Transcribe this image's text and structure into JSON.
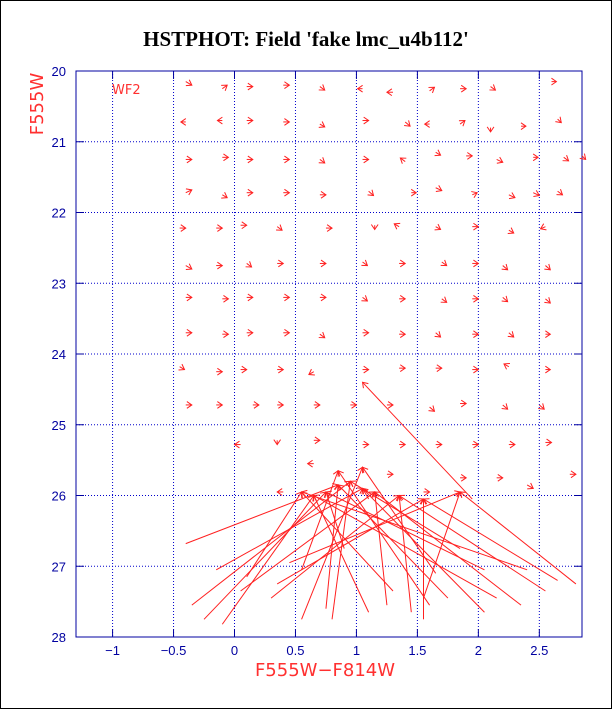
{
  "chart_data": {
    "type": "scatter",
    "title": "HSTPHOT: Field 'fake lmc_u4b112'",
    "xlabel": "F555W−F814W",
    "ylabel": "F555W",
    "annotation": "WF2",
    "xlim": [
      -1.3,
      2.85
    ],
    "ylim": [
      28,
      20
    ],
    "y_inverted": true,
    "grid": true,
    "x_ticks": [
      -1,
      -0.5,
      0,
      0.5,
      1,
      1.5,
      2,
      2.5
    ],
    "x_tick_labels": [
      "−1",
      "−0.5",
      "0",
      "0.5",
      "1",
      "1.5",
      "2",
      "2.5"
    ],
    "y_ticks": [
      20,
      21,
      22,
      23,
      24,
      25,
      26,
      27,
      28
    ],
    "y_tick_labels": [
      "20",
      "21",
      "22",
      "23",
      "24",
      "25",
      "26",
      "27",
      "28"
    ],
    "colors": {
      "vectors": "#ff2020",
      "grid": "#0000cc",
      "axes": "#0000a0",
      "title": "#000000",
      "labels": "#ff3030"
    },
    "series": [
      {
        "x": [
          -0.4,
          -0.1,
          0.1,
          0.4,
          0.7,
          1.05,
          1.3,
          1.6,
          1.85,
          2.1,
          2.6
        ],
        "y": [
          20.15,
          20.25,
          20.22,
          20.2,
          20.22,
          20.25,
          20.3,
          20.28,
          20.25,
          20.22,
          20.15
        ],
        "dx": [
          0.05,
          0.04,
          0.05,
          0.05,
          0.04,
          -0.04,
          -0.05,
          0.04,
          0.05,
          0.04,
          0.04
        ],
        "dy": [
          0.05,
          -0.05,
          0.0,
          0.0,
          0.05,
          0.0,
          0.0,
          -0.05,
          0.0,
          0.05,
          0.0
        ]
      },
      {
        "x": [
          -0.4,
          -0.1,
          0.1,
          0.4,
          0.7,
          1.05,
          1.4,
          1.6,
          1.85,
          2.1,
          2.35,
          2.65
        ],
        "y": [
          20.72,
          20.7,
          20.7,
          20.72,
          20.75,
          20.7,
          20.72,
          20.75,
          20.75,
          20.8,
          20.78,
          20.68
        ],
        "dx": [
          -0.04,
          -0.04,
          0.05,
          0.05,
          0.04,
          0.05,
          0.04,
          -0.04,
          0.04,
          0.0,
          0.04,
          0.03
        ],
        "dy": [
          0.0,
          0.0,
          0.0,
          0.0,
          0.04,
          0.0,
          0.06,
          0.0,
          -0.05,
          0.06,
          0.0,
          0.05
        ]
      },
      {
        "x": [
          -0.4,
          -0.1,
          0.1,
          0.4,
          0.7,
          1.05,
          1.4,
          1.65,
          1.9,
          2.15,
          2.45,
          2.7,
          2.85
        ],
        "y": [
          21.25,
          21.22,
          21.25,
          21.25,
          21.25,
          21.25,
          21.28,
          21.15,
          21.2,
          21.25,
          21.22,
          21.22,
          21.2
        ],
        "dx": [
          0.05,
          0.05,
          0.05,
          0.05,
          0.04,
          0.05,
          -0.04,
          0.04,
          0.05,
          0.05,
          0.04,
          0.04,
          0.03
        ],
        "dy": [
          0.0,
          0.0,
          0.0,
          0.0,
          0.05,
          0.0,
          -0.05,
          0.04,
          0.0,
          0.04,
          0.0,
          0.05,
          0.05
        ]
      },
      {
        "x": [
          -0.4,
          -0.1,
          0.1,
          0.4,
          0.7,
          1.1,
          1.45,
          1.65,
          1.95,
          2.25,
          2.45,
          2.65
        ],
        "y": [
          21.72,
          21.75,
          21.72,
          21.72,
          21.75,
          21.7,
          21.72,
          21.65,
          21.75,
          21.75,
          21.72,
          21.7
        ],
        "dx": [
          0.05,
          0.04,
          0.05,
          0.05,
          0.05,
          0.04,
          0.04,
          0.05,
          0.04,
          0.05,
          0.05,
          0.04
        ],
        "dy": [
          -0.04,
          0.04,
          0.0,
          0.0,
          0.0,
          0.06,
          0.0,
          0.04,
          -0.03,
          0.04,
          0.04,
          0.05
        ]
      },
      {
        "x": [
          -0.45,
          -0.15,
          0.05,
          0.35,
          0.75,
          1.15,
          1.35,
          1.65,
          1.95,
          2.25,
          2.55
        ],
        "y": [
          22.22,
          22.22,
          22.18,
          22.2,
          22.22,
          22.18,
          22.2,
          22.2,
          22.2,
          22.25,
          22.2
        ],
        "dx": [
          0.05,
          0.05,
          0.05,
          0.04,
          0.05,
          0.0,
          -0.04,
          0.04,
          0.05,
          0.04,
          -0.04
        ],
        "dy": [
          0.0,
          0.0,
          0.0,
          0.05,
          0.0,
          0.06,
          -0.04,
          0.04,
          0.0,
          0.04,
          0.03
        ]
      },
      {
        "x": [
          -0.4,
          -0.15,
          0.1,
          0.35,
          0.7,
          1.05,
          1.35,
          1.7,
          1.95,
          2.2,
          2.55
        ],
        "y": [
          22.75,
          22.75,
          22.72,
          22.72,
          22.72,
          22.7,
          22.72,
          22.7,
          22.72,
          22.75,
          22.75
        ],
        "dx": [
          0.05,
          0.05,
          0.04,
          0.05,
          0.05,
          0.04,
          0.05,
          0.04,
          0.05,
          0.04,
          0.04
        ],
        "dy": [
          0.05,
          0.0,
          0.05,
          0.0,
          0.0,
          0.05,
          0.0,
          0.05,
          0.0,
          0.06,
          0.06
        ]
      },
      {
        "x": [
          -0.4,
          -0.1,
          0.1,
          0.4,
          0.7,
          1.05,
          1.35,
          1.7,
          1.95,
          2.2,
          2.55
        ],
        "y": [
          23.2,
          23.22,
          23.2,
          23.2,
          23.2,
          23.2,
          23.22,
          23.22,
          23.22,
          23.2,
          23.22
        ],
        "dx": [
          0.05,
          0.05,
          0.05,
          0.05,
          0.05,
          0.04,
          0.05,
          0.04,
          0.05,
          0.04,
          0.04
        ],
        "dy": [
          0.0,
          0.0,
          0.0,
          0.0,
          0.0,
          0.05,
          0.0,
          0.05,
          0.0,
          0.06,
          0.06
        ]
      },
      {
        "x": [
          -0.4,
          -0.1,
          0.1,
          0.4,
          0.7,
          1.05,
          1.35,
          1.65,
          1.95,
          2.25,
          2.55
        ],
        "y": [
          23.7,
          23.72,
          23.7,
          23.7,
          23.72,
          23.7,
          23.72,
          23.7,
          23.72,
          23.7,
          23.72
        ],
        "dx": [
          0.05,
          0.05,
          0.05,
          0.05,
          0.04,
          0.05,
          0.05,
          0.04,
          0.05,
          0.04,
          0.04
        ],
        "dy": [
          0.0,
          0.0,
          0.0,
          0.0,
          0.05,
          0.0,
          0.0,
          0.06,
          0.0,
          0.06,
          0.0
        ]
      },
      {
        "x": [
          -0.45,
          -0.15,
          0.05,
          0.35,
          0.65,
          1.05,
          1.35,
          1.65,
          1.95,
          2.25,
          2.55
        ],
        "y": [
          24.18,
          24.25,
          24.22,
          24.22,
          24.25,
          24.22,
          24.2,
          24.2,
          24.22,
          24.18,
          24.22
        ],
        "dx": [
          0.04,
          0.05,
          0.05,
          0.05,
          -0.04,
          0.05,
          0.05,
          0.05,
          0.05,
          -0.04,
          0.04
        ],
        "dy": [
          0.04,
          0.0,
          0.0,
          0.0,
          0.04,
          0.0,
          0.0,
          0.0,
          0.0,
          -0.04,
          0.0
        ]
      },
      {
        "x": [
          -0.4,
          -0.15,
          0.15,
          0.35,
          0.65,
          0.95,
          1.25,
          1.6,
          1.85,
          2.2,
          2.5
        ],
        "y": [
          24.72,
          24.72,
          24.72,
          24.72,
          24.72,
          24.72,
          24.72,
          24.75,
          24.7,
          24.72,
          24.72
        ],
        "dx": [
          0.05,
          0.05,
          0.05,
          0.05,
          0.05,
          0.05,
          0.05,
          0.04,
          0.05,
          0.04,
          0.04
        ],
        "dy": [
          0.0,
          0.0,
          0.0,
          0.0,
          0.0,
          0.0,
          0.0,
          0.06,
          0.0,
          0.06,
          0.06
        ]
      },
      {
        "x": [
          0.05,
          0.35,
          0.65,
          1.05,
          1.35,
          1.65,
          1.95,
          2.25,
          2.55
        ],
        "y": [
          25.28,
          25.22,
          25.22,
          25.28,
          25.28,
          25.28,
          25.28,
          25.28,
          25.25
        ],
        "dx": [
          -0.05,
          0.0,
          0.05,
          0.05,
          0.05,
          0.05,
          0.05,
          0.05,
          0.05
        ],
        "dy": [
          0.0,
          0.06,
          0.0,
          0.0,
          0.0,
          0.0,
          0.0,
          0.0,
          0.0
        ]
      },
      {
        "x": [
          0.4,
          0.65,
          1.25,
          1.55,
          1.85,
          2.15,
          2.4,
          2.75
        ],
        "y": [
          25.95,
          25.55,
          25.7,
          25.95,
          25.75,
          25.75,
          25.85,
          25.7
        ],
        "dx": [
          -0.05,
          -0.05,
          0.05,
          0.05,
          0.05,
          0.05,
          0.05,
          0.05
        ],
        "dy": [
          0.0,
          0.0,
          0.0,
          0.0,
          0.0,
          0.0,
          0.05,
          0.0
        ]
      }
    ],
    "shift_vectors": [
      {
        "x": [
          -0.4,
          -0.35,
          -0.25,
          -0.15,
          -0.1,
          0.05,
          0.1,
          0.3,
          0.35,
          0.45,
          0.55,
          0.55,
          0.75,
          0.8,
          0.9,
          1.1,
          1.1,
          1.25,
          1.3,
          1.45,
          1.55,
          1.55,
          1.6,
          1.65,
          1.75,
          1.85,
          2.05,
          2.05,
          2.15,
          2.35,
          2.4,
          2.55,
          2.65,
          2.8
        ],
        "y": [
          26.68,
          27.55,
          27.75,
          27.05,
          27.82,
          27.35,
          27.15,
          27.45,
          27.25,
          26.95,
          27.05,
          27.75,
          27.6,
          27.75,
          26.75,
          26.05,
          27.65,
          27.55,
          27.35,
          27.65,
          27.75,
          27.45,
          27.55,
          27.1,
          27.45,
          26.75,
          27.05,
          27.65,
          27.45,
          27.55,
          27.05,
          27.35,
          27.2,
          27.25
        ]
      }
    ]
  }
}
